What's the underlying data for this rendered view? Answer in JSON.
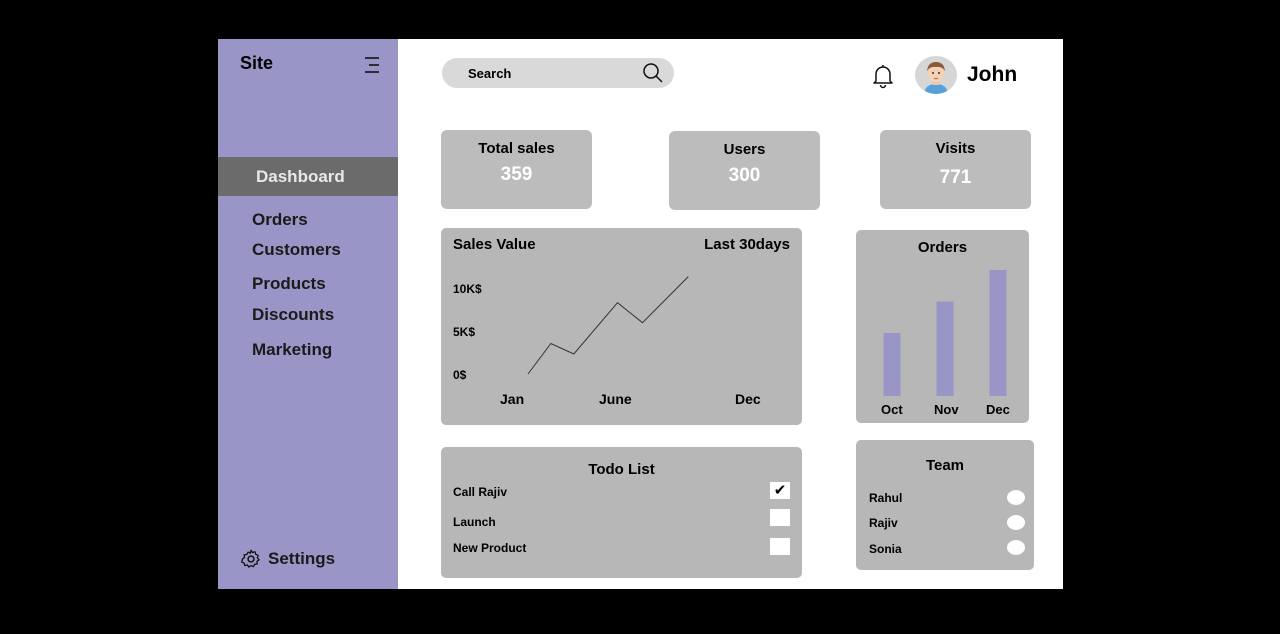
{
  "sidebar": {
    "brand": "Site",
    "menu_icon": "hamburger-menu-icon",
    "active_item": "Dashboard",
    "items": [
      {
        "label": "Orders"
      },
      {
        "label": "Customers"
      },
      {
        "label": "Products"
      },
      {
        "label": "Discounts"
      },
      {
        "label": "Marketing"
      }
    ],
    "settings": {
      "label": "Settings",
      "icon": "gear-icon"
    },
    "color": "#9a95c7"
  },
  "header": {
    "search_placeholder": "Search",
    "search_icon": "search-icon",
    "bell_icon": "bell-icon",
    "user_name": "John"
  },
  "stats": [
    {
      "label": "Total sales",
      "value": "359"
    },
    {
      "label": "Users",
      "value": "300"
    },
    {
      "label": "Visits",
      "value": "771"
    }
  ],
  "sales_chart": {
    "title": "Sales Value",
    "range": "Last 30days",
    "y_ticks": [
      "10K$",
      "5K$",
      "0$"
    ],
    "x_ticks": [
      "Jan",
      "June",
      "Dec"
    ],
    "chart_data": {
      "type": "line",
      "title": "Sales Value",
      "x_range": [
        1,
        12
      ],
      "ylim": [
        0,
        10
      ],
      "y_unit": "K$",
      "points": [
        [
          1,
          0
        ],
        [
          2.1,
          3.5
        ],
        [
          3.2,
          2.3
        ],
        [
          5.3,
          8.2
        ],
        [
          6.5,
          5.9
        ],
        [
          8.7,
          11.2
        ]
      ],
      "color": "#333333"
    }
  },
  "orders_chart": {
    "title": "Orders",
    "chart_data": {
      "type": "bar",
      "categories": [
        "Oct",
        "Nov",
        "Dec"
      ],
      "values": [
        0.5,
        0.75,
        1.0
      ],
      "color": "#9a95c7"
    }
  },
  "todo": {
    "title": "Todo List",
    "items": [
      {
        "label": "Call Rajiv",
        "checked": true
      },
      {
        "label": "Launch",
        "checked": false
      },
      {
        "label": "New Product",
        "checked": false
      }
    ]
  },
  "team": {
    "title": "Team",
    "members": [
      {
        "name": "Rahul"
      },
      {
        "name": "Rajiv"
      },
      {
        "name": "Sonia"
      }
    ]
  }
}
